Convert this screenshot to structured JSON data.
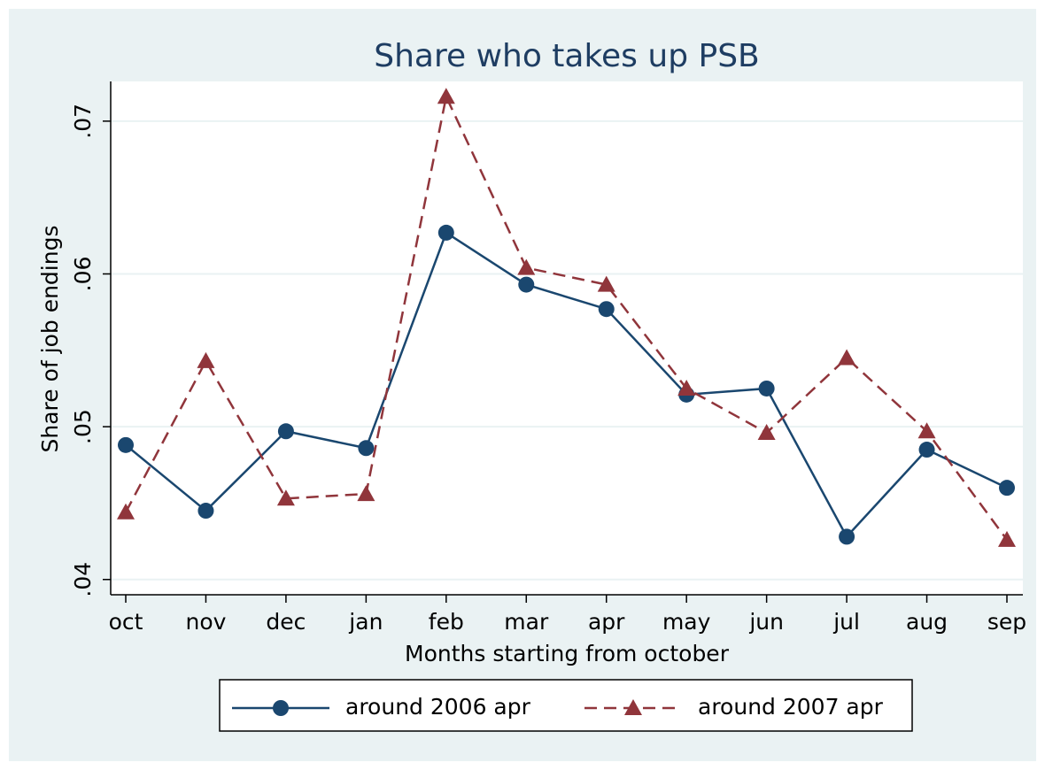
{
  "chart_data": {
    "type": "line",
    "title": "Share who takes up PSB",
    "x_label": "Months starting from october",
    "y_label": "Share of job endings",
    "categories": [
      "oct",
      "nov",
      "dec",
      "jan",
      "feb",
      "mar",
      "apr",
      "may",
      "jun",
      "jul",
      "aug",
      "sep"
    ],
    "series": [
      {
        "name": "around 2006 apr",
        "color": "#1a476f",
        "marker": "circle",
        "dash": "solid",
        "values": [
          0.0488,
          0.0445,
          0.0497,
          0.0486,
          0.0627,
          0.0593,
          0.0577,
          0.0521,
          0.0525,
          0.0428,
          0.0485,
          0.046
        ]
      },
      {
        "name": "around 2007 apr",
        "color": "#90353b",
        "marker": "triangle",
        "dash": "dashed",
        "values": [
          0.0444,
          0.0543,
          0.0453,
          0.0456,
          0.0716,
          0.0604,
          0.0593,
          0.0525,
          0.0496,
          0.0545,
          0.0497,
          0.0426
        ]
      }
    ],
    "ylim": [
      0.039,
      0.0726
    ],
    "yticks": [
      {
        "value": 0.04,
        "label": ".04"
      },
      {
        "value": 0.05,
        "label": ".05"
      },
      {
        "value": 0.06,
        "label": ".06"
      },
      {
        "value": 0.07,
        "label": ".07"
      }
    ],
    "grid": true,
    "legend": "bottom"
  }
}
